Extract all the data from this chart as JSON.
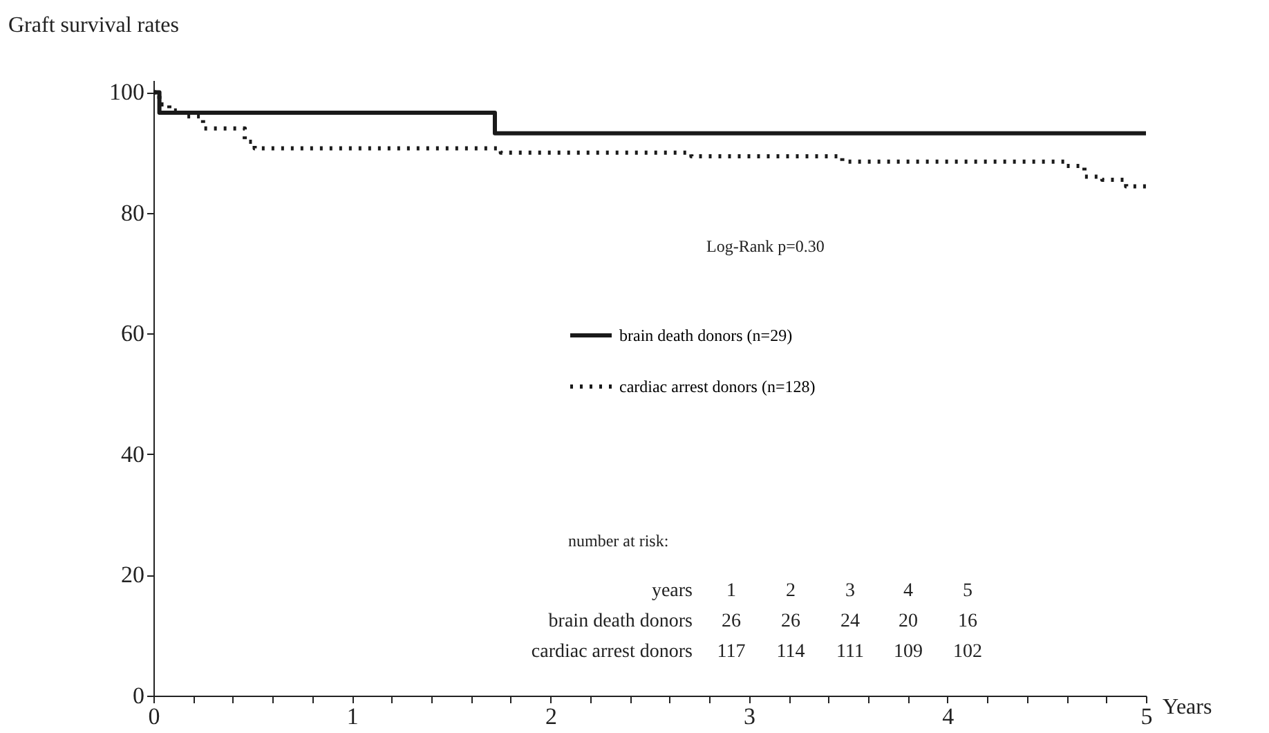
{
  "chart_data": {
    "type": "step",
    "ylabel": "Graft survival rates",
    "xlabel": "Years",
    "xlim": [
      0,
      5
    ],
    "ylim": [
      0,
      102
    ],
    "xticks": [
      0,
      {
        "value": 0.2,
        "label": null
      },
      {
        "value": 0.4,
        "label": null
      },
      {
        "value": 0.6,
        "label": null
      },
      {
        "value": 0.8,
        "label": null
      },
      1,
      {
        "value": 1.2,
        "label": null
      },
      {
        "value": 1.4,
        "label": null
      },
      {
        "value": 1.6,
        "label": null
      },
      {
        "value": 1.8,
        "label": null
      },
      2,
      {
        "value": 2.2,
        "label": null
      },
      {
        "value": 2.4,
        "label": null
      },
      {
        "value": 2.6,
        "label": null
      },
      {
        "value": 2.8,
        "label": null
      },
      3,
      {
        "value": 3.2,
        "label": null
      },
      {
        "value": 3.4,
        "label": null
      },
      {
        "value": 3.6,
        "label": null
      },
      {
        "value": 3.8,
        "label": null
      },
      4,
      {
        "value": 4.2,
        "label": null
      },
      {
        "value": 4.4,
        "label": null
      },
      {
        "value": 4.6,
        "label": null
      },
      {
        "value": 4.8,
        "label": null
      },
      5
    ],
    "yticks": [
      0,
      20,
      40,
      60,
      80,
      100
    ],
    "grid": false,
    "legend": "right",
    "series": [
      {
        "name": "brain death donors (n=29)",
        "color": "#1a1a1a",
        "line_style": "solid",
        "x": [
          0,
          0.03,
          1.72,
          5
        ],
        "values": [
          100,
          96.6,
          93.2,
          93.2
        ]
      },
      {
        "name": "cardiac arrest donors (n=128)",
        "color": "#1a1a1a",
        "line_style": "dotted",
        "x": [
          0,
          0.03,
          0.08,
          0.15,
          0.25,
          0.46,
          0.51,
          1.75,
          2.71,
          3.47,
          4.59,
          4.69,
          4.78,
          4.9,
          5
        ],
        "values": [
          100,
          98,
          97,
          96,
          94,
          91.8,
          90.7,
          90,
          89.4,
          88.5,
          87.8,
          86,
          85.5,
          84.4,
          84.4
        ]
      }
    ],
    "annotations": [
      "Log-Rank p=0.30",
      "number at risk:",
      "years",
      "1",
      "2",
      "3",
      "4",
      "5",
      "brain death donors",
      "26",
      "26",
      "24",
      "20",
      "16",
      "cardiac arrest donors",
      "117",
      "114",
      "111",
      "109",
      "102"
    ]
  }
}
